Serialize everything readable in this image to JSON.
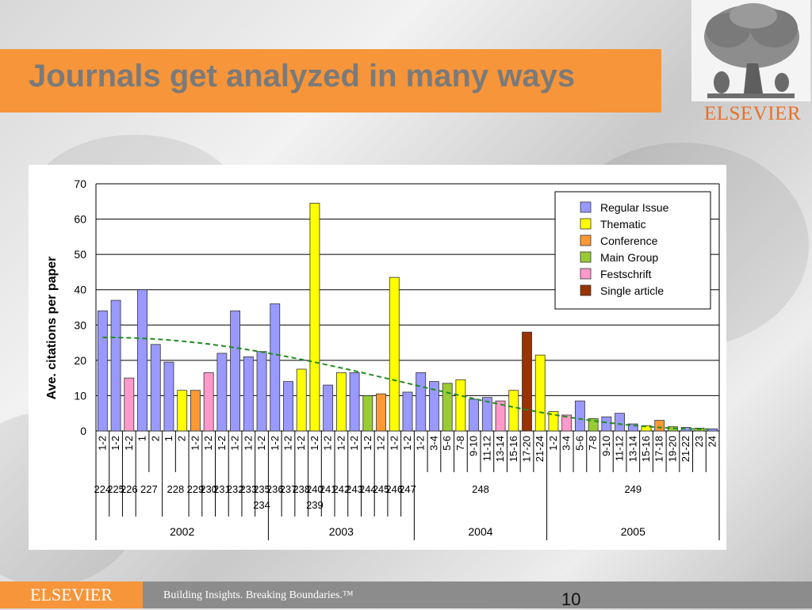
{
  "slide": {
    "title": "Journals get analyzed in many ways",
    "logo_text": "ELSEVIER",
    "footer_brand": "ELSEVIER",
    "footer_tagline": "Building Insights. Breaking Boundaries.™",
    "page_number": "10"
  },
  "chart_data": {
    "type": "bar",
    "ylabel": "Ave. citations per paper",
    "ylim": [
      0,
      70
    ],
    "yticks": [
      0,
      10,
      20,
      30,
      40,
      50,
      60,
      70
    ],
    "grid": true,
    "legend_position": "top-right",
    "categories": [
      {
        "name": "Regular Issue",
        "color": "#9999ff"
      },
      {
        "name": "Thematic",
        "color": "#ffff00"
      },
      {
        "name": "Conference",
        "color": "#ff9933"
      },
      {
        "name": "Main Group",
        "color": "#99cc33"
      },
      {
        "name": "Festschrift",
        "color": "#ff99cc"
      },
      {
        "name": "Single article",
        "color": "#993300"
      }
    ],
    "bars": [
      {
        "issue": "1-2",
        "value": 34,
        "category": 0
      },
      {
        "issue": "1-2",
        "value": 37,
        "category": 0
      },
      {
        "issue": "1-2",
        "value": 15,
        "category": 4
      },
      {
        "issue": "1",
        "value": 40,
        "category": 0
      },
      {
        "issue": "2",
        "value": 24.5,
        "category": 0
      },
      {
        "issue": "1",
        "value": 19.5,
        "category": 0
      },
      {
        "issue": "2",
        "value": 11.5,
        "category": 1
      },
      {
        "issue": "1-2",
        "value": 11.5,
        "category": 2
      },
      {
        "issue": "1-2",
        "value": 16.5,
        "category": 4
      },
      {
        "issue": "1-2",
        "value": 22,
        "category": 0
      },
      {
        "issue": "1-2",
        "value": 34,
        "category": 0
      },
      {
        "issue": "1-2",
        "value": 21,
        "category": 0
      },
      {
        "issue": "1-2",
        "value": 22.5,
        "category": 0
      },
      {
        "issue": "1-2",
        "value": 36,
        "category": 0
      },
      {
        "issue": "1-2",
        "value": 14,
        "category": 0
      },
      {
        "issue": "1-2",
        "value": 17.5,
        "category": 1
      },
      {
        "issue": "1-2",
        "value": 64.5,
        "category": 1
      },
      {
        "issue": "1-2",
        "value": 13,
        "category": 0
      },
      {
        "issue": "1-2",
        "value": 16.5,
        "category": 1
      },
      {
        "issue": "1-2",
        "value": 16.5,
        "category": 0
      },
      {
        "issue": "1-2",
        "value": 10,
        "category": 3
      },
      {
        "issue": "1-2",
        "value": 10.5,
        "category": 2
      },
      {
        "issue": "1-2",
        "value": 43.5,
        "category": 1
      },
      {
        "issue": "1-2",
        "value": 11,
        "category": 0
      },
      {
        "issue": "1-2",
        "value": 16.5,
        "category": 0
      },
      {
        "issue": "3-4",
        "value": 14,
        "category": 0
      },
      {
        "issue": "5-6",
        "value": 13.5,
        "category": 3
      },
      {
        "issue": "7-8",
        "value": 14.5,
        "category": 1
      },
      {
        "issue": "9-10",
        "value": 9,
        "category": 0
      },
      {
        "issue": "11-12",
        "value": 9.5,
        "category": 0
      },
      {
        "issue": "13-14",
        "value": 8.5,
        "category": 4
      },
      {
        "issue": "15-16",
        "value": 11.5,
        "category": 1
      },
      {
        "issue": "17-20",
        "value": 28,
        "category": 5
      },
      {
        "issue": "21-24",
        "value": 21.5,
        "category": 1
      },
      {
        "issue": "1-2",
        "value": 5.5,
        "category": 1
      },
      {
        "issue": "3-4",
        "value": 4.5,
        "category": 4
      },
      {
        "issue": "5-6",
        "value": 8.5,
        "category": 0
      },
      {
        "issue": "7-8",
        "value": 3.5,
        "category": 3
      },
      {
        "issue": "9-10",
        "value": 4,
        "category": 0
      },
      {
        "issue": "11-12",
        "value": 5,
        "category": 0
      },
      {
        "issue": "13-14",
        "value": 2,
        "category": 0
      },
      {
        "issue": "15-16",
        "value": 1.5,
        "category": 1
      },
      {
        "issue": "17-18",
        "value": 3,
        "category": 2
      },
      {
        "issue": "19-20",
        "value": 1.2,
        "category": 3
      },
      {
        "issue": "21-22",
        "value": 1,
        "category": 0
      },
      {
        "issue": "23",
        "value": 0.8,
        "category": 3
      },
      {
        "issue": "24",
        "value": 0.6,
        "category": 0
      }
    ],
    "volumes": [
      {
        "label": "224",
        "start": 0,
        "end": 0,
        "row": 0
      },
      {
        "label": "225",
        "start": 1,
        "end": 1,
        "row": 0
      },
      {
        "label": "226",
        "start": 2,
        "end": 2,
        "row": 0
      },
      {
        "label": "227",
        "start": 3,
        "end": 4,
        "row": 0
      },
      {
        "label": "228",
        "start": 5,
        "end": 6,
        "row": 0
      },
      {
        "label": "229",
        "start": 7,
        "end": 7,
        "row": 0
      },
      {
        "label": "230",
        "start": 8,
        "end": 8,
        "row": 0
      },
      {
        "label": "231",
        "start": 9,
        "end": 9,
        "row": 0
      },
      {
        "label": "232",
        "start": 10,
        "end": 10,
        "row": 0
      },
      {
        "label": "233",
        "start": 11,
        "end": 11,
        "row": 0
      },
      {
        "label": "234",
        "start": 12,
        "end": 12,
        "row": 1
      },
      {
        "label": "235",
        "start": 12,
        "end": 12,
        "row": 0
      },
      {
        "label": "236",
        "start": 13,
        "end": 13,
        "row": 0
      },
      {
        "label": "237",
        "start": 14,
        "end": 14,
        "row": 0
      },
      {
        "label": "238",
        "start": 15,
        "end": 15,
        "row": 0
      },
      {
        "label": "239",
        "start": 16,
        "end": 16,
        "row": 1
      },
      {
        "label": "240",
        "start": 16,
        "end": 16,
        "row": 0
      },
      {
        "label": "241",
        "start": 17,
        "end": 17,
        "row": 0
      },
      {
        "label": "242",
        "start": 18,
        "end": 18,
        "row": 0
      },
      {
        "label": "243",
        "start": 19,
        "end": 19,
        "row": 0
      },
      {
        "label": "244",
        "start": 20,
        "end": 20,
        "row": 0
      },
      {
        "label": "245",
        "start": 21,
        "end": 21,
        "row": 0
      },
      {
        "label": "246",
        "start": 22,
        "end": 22,
        "row": 0
      },
      {
        "label": "247",
        "start": 23,
        "end": 23,
        "row": 0
      },
      {
        "label": "248",
        "start": 24,
        "end": 33,
        "row": 0
      },
      {
        "label": "249",
        "start": 34,
        "end": 46,
        "row": 0
      }
    ],
    "years": [
      {
        "label": "2002",
        "start": 0,
        "end": 12
      },
      {
        "label": "2003",
        "start": 13,
        "end": 23
      },
      {
        "label": "2004",
        "start": 24,
        "end": 33
      },
      {
        "label": "2005",
        "start": 34,
        "end": 46
      }
    ],
    "trendline": {
      "style": "dashed",
      "color": "#228b22",
      "start_value": 26.5,
      "end_value": 0.5
    }
  }
}
